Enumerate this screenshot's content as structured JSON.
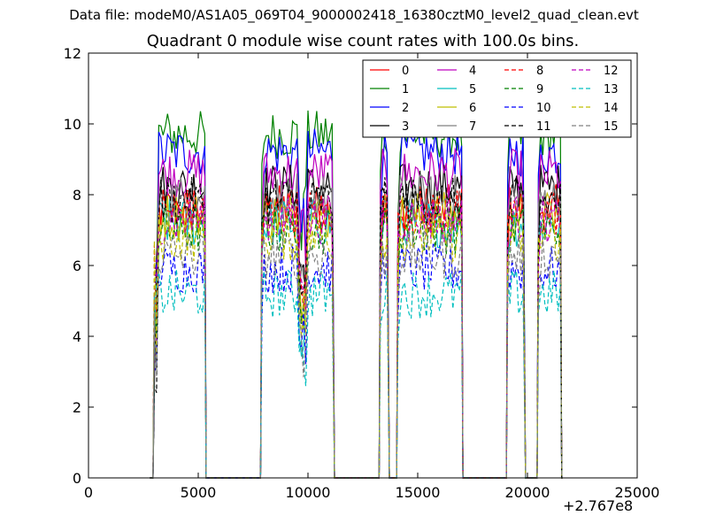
{
  "header": {
    "suptitle": "Data file: modeM0/AS1A05_069T04_9000002418_16380cztM0_level2_quad_clean.evt",
    "offset_label": "+2.767e8"
  },
  "chart_data": {
    "type": "line",
    "title": "Quadrant 0 module wise count rates with 100.0s bins.",
    "xlabel": "",
    "ylabel": "",
    "xlim": [
      0,
      25000
    ],
    "ylim": [
      0,
      12
    ],
    "x_ticks": [
      "0",
      "5000",
      "10000",
      "15000",
      "20000",
      "25000"
    ],
    "y_ticks": [
      "0",
      "2",
      "4",
      "6",
      "8",
      "10",
      "12"
    ],
    "x_offset": "+2.767e8",
    "grid": false,
    "legend_position": "top-right",
    "segments": [
      {
        "x0": 3000,
        "x1": 5300
      },
      {
        "x0": 7900,
        "x1": 11150
      },
      {
        "x0": 13300,
        "x1": 13650
      },
      {
        "x0": 14100,
        "x1": 17000
      },
      {
        "x0": 19100,
        "x1": 19850
      },
      {
        "x0": 20500,
        "x1": 21500
      }
    ],
    "series": [
      {
        "name": "0",
        "color": "#ff0000",
        "dash": "solid",
        "level": 7.6
      },
      {
        "name": "1",
        "color": "#008000",
        "dash": "solid",
        "level": 9.7
      },
      {
        "name": "2",
        "color": "#0000ff",
        "dash": "solid",
        "level": 9.2
      },
      {
        "name": "3",
        "color": "#000000",
        "dash": "solid",
        "level": 8.2
      },
      {
        "name": "4",
        "color": "#bf00bf",
        "dash": "solid",
        "level": 8.6
      },
      {
        "name": "5",
        "color": "#00bfbf",
        "dash": "solid",
        "level": 7.2
      },
      {
        "name": "6",
        "color": "#bfbf00",
        "dash": "solid",
        "level": 7.4
      },
      {
        "name": "7",
        "color": "#808080",
        "dash": "solid",
        "level": 7.9
      },
      {
        "name": "8",
        "color": "#ff0000",
        "dash": "dashed",
        "level": 7.5
      },
      {
        "name": "9",
        "color": "#008000",
        "dash": "dashed",
        "level": 7.0
      },
      {
        "name": "10",
        "color": "#0000ff",
        "dash": "dashed",
        "level": 5.9
      },
      {
        "name": "11",
        "color": "#000000",
        "dash": "dashed",
        "level": 7.8
      },
      {
        "name": "12",
        "color": "#bf00bf",
        "dash": "dashed",
        "level": 7.3
      },
      {
        "name": "13",
        "color": "#00bfbf",
        "dash": "dashed",
        "level": 5.2
      },
      {
        "name": "14",
        "color": "#bfbf00",
        "dash": "dashed",
        "level": 6.8
      },
      {
        "name": "15",
        "color": "#808080",
        "dash": "dashed",
        "level": 6.3
      }
    ]
  }
}
